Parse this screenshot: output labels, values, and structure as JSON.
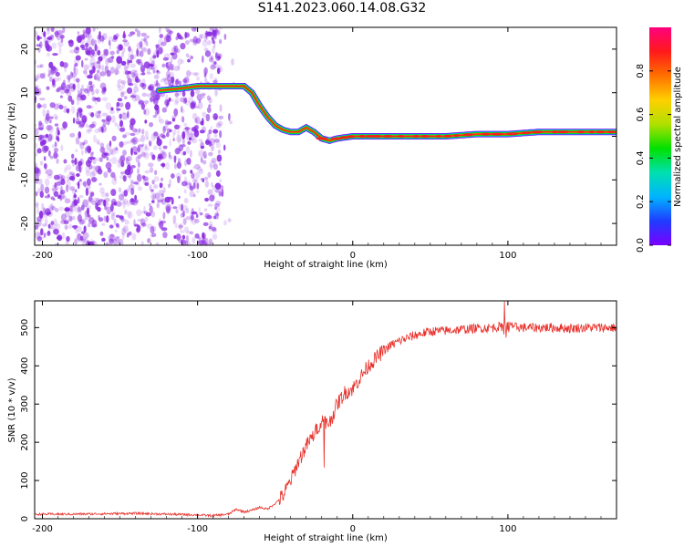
{
  "title": "S141.2023.060.14.08.G32",
  "colors": {
    "noise": "#8a2be2",
    "snr_line": "#e8302a",
    "axis": "#000000",
    "colormap": [
      "#7a00ff",
      "#1f3cff",
      "#00b4ff",
      "#00e0b0",
      "#00e000",
      "#b0e000",
      "#ffd000",
      "#ff7000",
      "#ff1a1a",
      "#ff007f"
    ]
  },
  "chart_data": [
    {
      "type": "heatmap",
      "xlabel": "Height of straight line (km)",
      "ylabel": "Frequency (Hz)",
      "xlim": [
        -205,
        170
      ],
      "ylim": [
        -25,
        25
      ],
      "xticks": [
        -200,
        -100,
        0,
        100
      ],
      "yticks": [
        -20,
        -10,
        0,
        10,
        20
      ],
      "grid": false,
      "colorbar": {
        "label": "Normalized spectral amplitude",
        "range": [
          0,
          1
        ],
        "ticks": [
          "0.0",
          "0.2",
          "0.4",
          "0.6",
          "0.8"
        ]
      },
      "noise_region": [
        -205,
        -85
      ],
      "ridge": {
        "x": [
          -125,
          -110,
          -100,
          -90,
          -80,
          -70,
          -65,
          -60,
          -55,
          -50,
          -45,
          -40,
          -35,
          -30,
          -25,
          -20,
          -15,
          -10,
          0,
          20,
          40,
          60,
          80,
          100,
          120,
          140,
          160,
          170
        ],
        "y": [
          10.5,
          11,
          11.5,
          11.5,
          11.5,
          11.5,
          10,
          7,
          4.5,
          2.5,
          1.5,
          1,
          1,
          2,
          1,
          -0.5,
          -1,
          -0.5,
          0,
          0,
          0,
          0,
          0.5,
          0.5,
          1,
          1,
          1,
          1
        ]
      }
    },
    {
      "type": "line",
      "xlabel": "Height of straight line (km)",
      "ylabel": "SNR (10 * v/v)",
      "xlim": [
        -205,
        170
      ],
      "ylim": [
        0,
        570
      ],
      "xticks": [
        -200,
        -100,
        0,
        100
      ],
      "yticks": [
        0,
        100,
        200,
        300,
        400,
        500
      ],
      "grid": false,
      "series": [
        {
          "x": [
            -205,
            -180,
            -160,
            -140,
            -120,
            -100,
            -90,
            -80,
            -75,
            -70,
            -65,
            -60,
            -55,
            -50,
            -45,
            -40,
            -35,
            -30,
            -25,
            -20,
            -15,
            -10,
            -5,
            0,
            5,
            10,
            15,
            20,
            25,
            30,
            40,
            50,
            60,
            70,
            80,
            90,
            100,
            110,
            120,
            130,
            140,
            150,
            160,
            170
          ],
          "values": [
            12,
            12,
            13,
            14,
            12,
            10,
            8,
            12,
            25,
            18,
            22,
            30,
            25,
            40,
            60,
            100,
            150,
            190,
            220,
            260,
            250,
            300,
            330,
            340,
            370,
            400,
            420,
            440,
            455,
            465,
            480,
            490,
            492,
            495,
            498,
            500,
            505,
            500,
            500,
            500,
            498,
            500,
            500,
            500
          ]
        }
      ]
    }
  ]
}
